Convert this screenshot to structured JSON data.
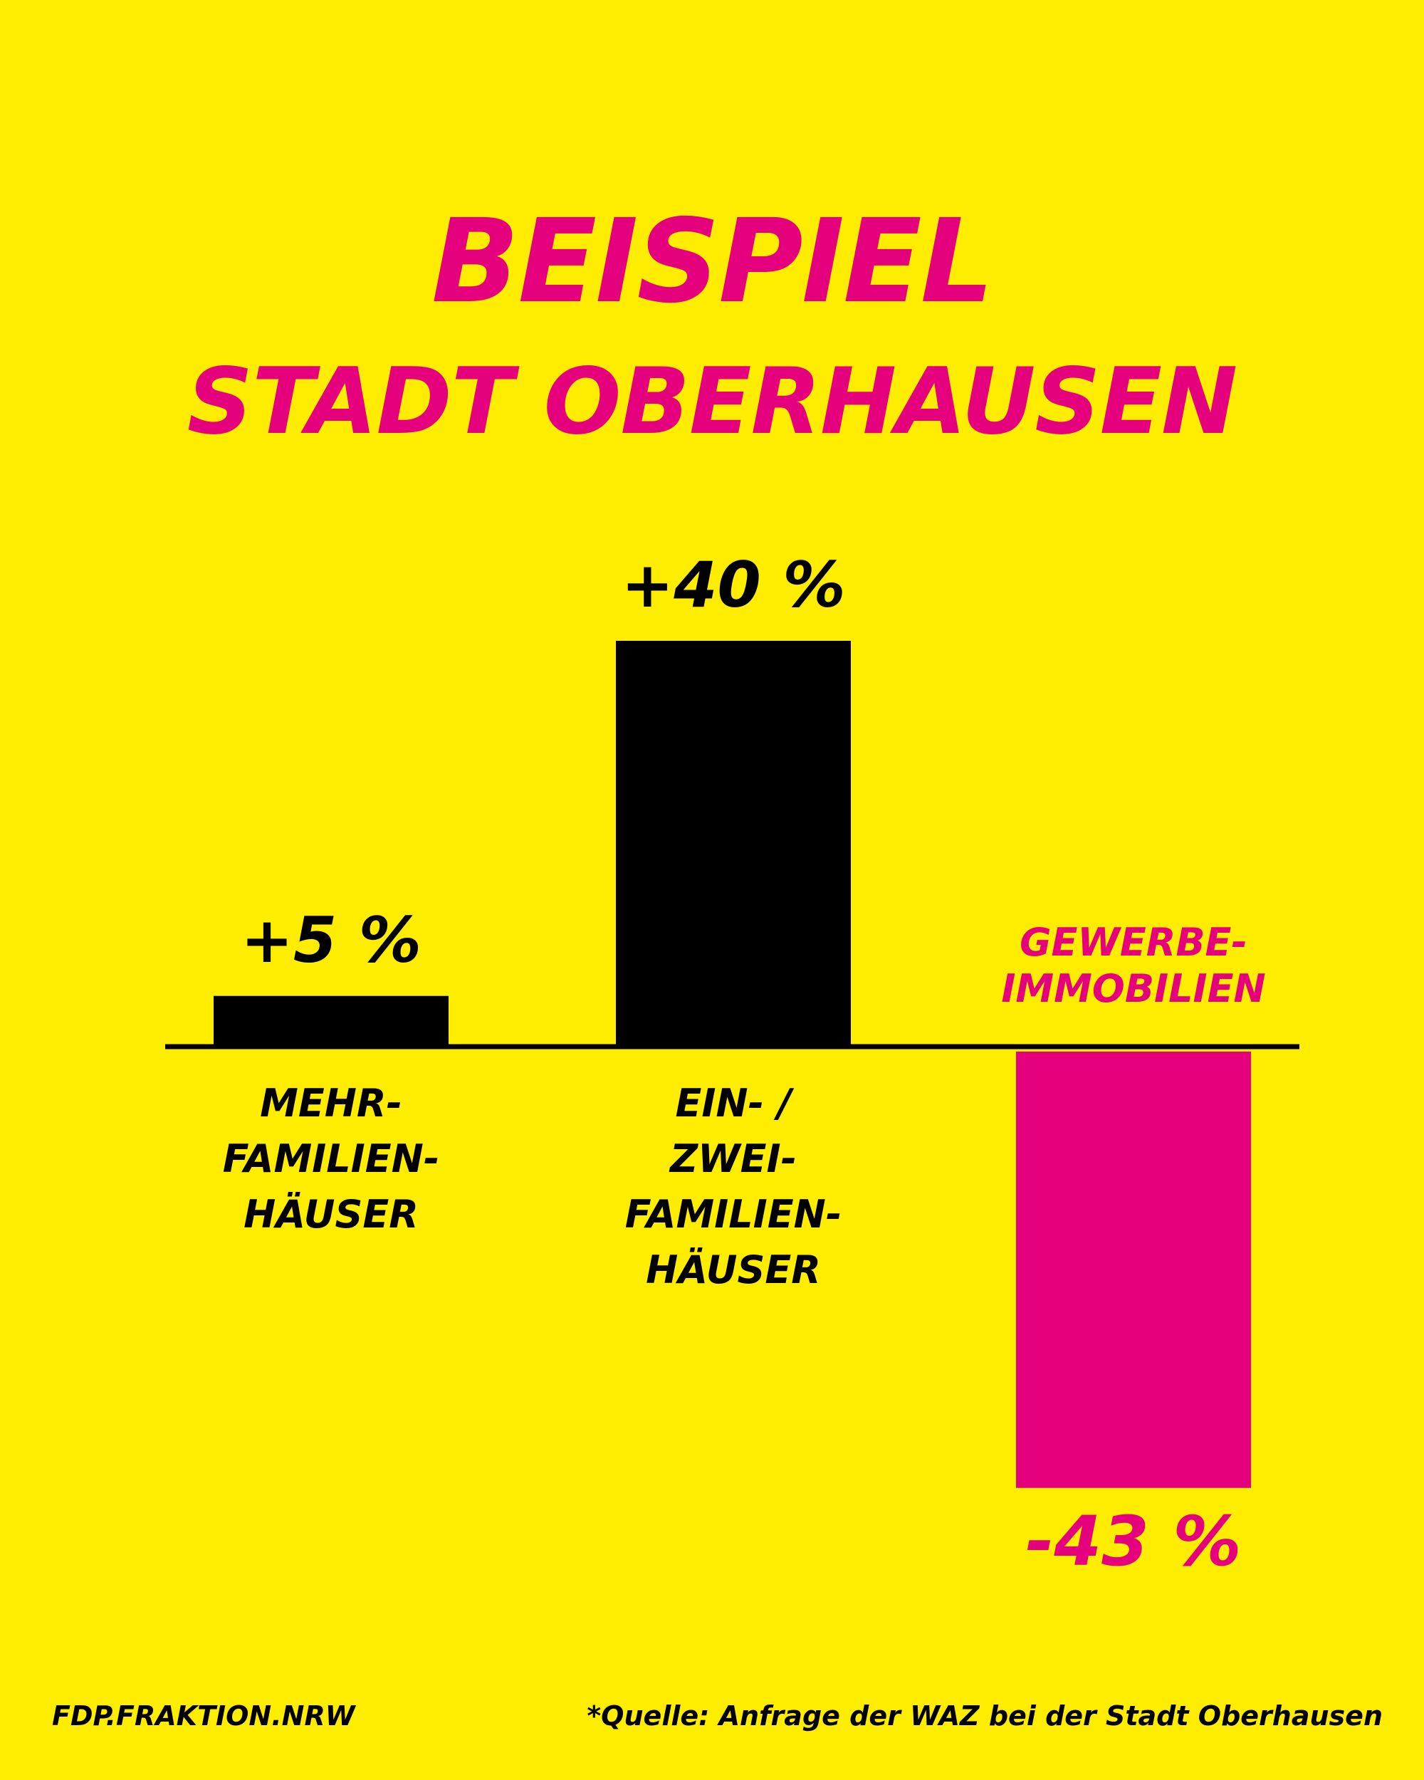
{
  "colors": {
    "background": "#FFED00",
    "positive_bar": "#000000",
    "negative_bar": "#E5007D",
    "title": "#E5007D"
  },
  "title": {
    "line1": "BEISPIEL",
    "line2": "STADT OBERHAUSEN"
  },
  "chart_data": {
    "type": "bar",
    "title": "BEISPIEL STADT OBERHAUSEN",
    "xlabel": "",
    "ylabel": "",
    "ylim": [
      -43,
      40
    ],
    "grid": false,
    "legend": "none",
    "categories": [
      [
        "MEHR-",
        "FAMILIEN-",
        "HÄUSER"
      ],
      [
        "EIN- /",
        "ZWEI-",
        "FAMILIEN-",
        "HÄUSER"
      ],
      [
        "GEWERBE-",
        "IMMOBILIEN"
      ]
    ],
    "values": [
      5,
      40,
      -43
    ],
    "value_labels": [
      "+5 %",
      "+40 %",
      "-43 %"
    ]
  },
  "footer": {
    "left": "FDP.FRAKTION.NRW",
    "right": "*Quelle: Anfrage der WAZ bei der Stadt Oberhausen"
  }
}
